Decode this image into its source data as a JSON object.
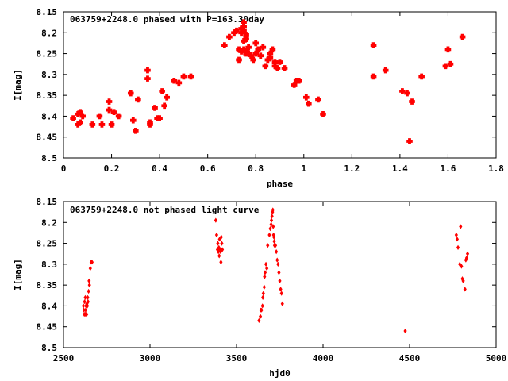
{
  "chart_data": [
    {
      "type": "scatter",
      "title": "063759+2248.0 phased with P=163.30day",
      "xlabel": "phase",
      "ylabel": "I[mag]",
      "xlim": [
        0,
        1.8
      ],
      "ylim": [
        8.5,
        8.15
      ],
      "y_inverted": true,
      "grid": false,
      "xticks": [
        0,
        0.2,
        0.4,
        0.6,
        0.8,
        1,
        1.2,
        1.4,
        1.6,
        1.8
      ],
      "xtick_labels": [
        "0",
        "0.2",
        "0.4",
        "0.6",
        "0.8",
        "1",
        "1.2",
        "1.4",
        "1.6",
        "1.8"
      ],
      "yticks": [
        8.15,
        8.2,
        8.25,
        8.3,
        8.35,
        8.4,
        8.45,
        8.5
      ],
      "ytick_labels": [
        "8.15",
        "8.2",
        "8.25",
        "8.3",
        "8.35",
        "8.4",
        "8.45",
        "8.5"
      ],
      "color": "#ff0000",
      "series": [
        {
          "x": [
            0.04,
            0.06,
            0.07,
            0.08,
            0.07,
            0.06,
            0.12,
            0.15,
            0.16,
            0.19,
            0.19,
            0.2,
            0.21,
            0.23,
            0.28,
            0.3,
            0.29,
            0.31,
            0.35,
            0.35,
            0.36,
            0.36,
            0.38,
            0.39,
            0.4,
            0.41,
            0.42,
            0.43,
            0.46,
            0.48,
            0.5,
            0.53,
            0.67,
            0.69,
            0.71,
            0.72,
            0.73,
            0.73,
            0.74,
            0.75,
            0.75,
            0.75,
            0.75,
            0.76,
            0.76,
            0.77,
            0.76,
            0.75,
            0.74,
            0.74,
            0.75,
            0.76,
            0.77,
            0.78,
            0.79,
            0.8,
            0.8,
            0.81,
            0.82,
            0.83,
            0.84,
            0.85,
            0.86,
            0.86,
            0.87,
            0.88,
            0.88,
            0.89,
            0.9,
            0.92,
            0.96,
            0.97,
            0.98,
            1.01,
            1.02,
            1.06,
            1.08,
            1.29,
            1.29,
            1.34,
            1.41,
            1.43,
            1.44,
            1.45,
            1.49,
            1.59,
            1.6,
            1.61,
            1.66
          ],
          "y": [
            8.405,
            8.395,
            8.415,
            8.4,
            8.39,
            8.42,
            8.42,
            8.4,
            8.42,
            8.385,
            8.365,
            8.42,
            8.39,
            8.4,
            8.345,
            8.435,
            8.41,
            8.36,
            8.31,
            8.29,
            8.42,
            8.415,
            8.38,
            8.405,
            8.405,
            8.34,
            8.375,
            8.355,
            8.315,
            8.32,
            8.305,
            8.305,
            8.23,
            8.21,
            8.2,
            8.195,
            8.265,
            8.24,
            8.245,
            8.22,
            8.175,
            8.185,
            8.195,
            8.205,
            8.215,
            8.235,
            8.25,
            8.24,
            8.2,
            8.19,
            8.185,
            8.245,
            8.25,
            8.255,
            8.265,
            8.225,
            8.25,
            8.24,
            8.255,
            8.235,
            8.28,
            8.265,
            8.25,
            8.26,
            8.24,
            8.28,
            8.27,
            8.285,
            8.27,
            8.285,
            8.325,
            8.315,
            8.315,
            8.355,
            8.37,
            8.36,
            8.395,
            8.23,
            8.305,
            8.29,
            8.34,
            8.345,
            8.46,
            8.365,
            8.305,
            8.28,
            8.24,
            8.275,
            8.21
          ]
        }
      ]
    },
    {
      "type": "scatter",
      "title": "063759+2248.0 not phased light curve",
      "xlabel": "hjd0",
      "ylabel": "I[mag]",
      "xlim": [
        2500,
        5000
      ],
      "ylim": [
        8.5,
        8.15
      ],
      "y_inverted": true,
      "grid": false,
      "xticks": [
        2500,
        3000,
        3500,
        4000,
        4500,
        5000
      ],
      "xtick_labels": [
        "2500",
        "3000",
        "3500",
        "4000",
        "4500",
        "5000"
      ],
      "yticks": [
        8.15,
        8.2,
        8.25,
        8.3,
        8.35,
        8.4,
        8.45,
        8.5
      ],
      "ytick_labels": [
        "8.15",
        "8.2",
        "8.25",
        "8.3",
        "8.35",
        "8.4",
        "8.45",
        "8.5"
      ],
      "color": "#ff0000",
      "series": [
        {
          "x": [
            2615,
            2620,
            2622,
            2625,
            2628,
            2630,
            2632,
            2635,
            2638,
            2640,
            2642,
            2645,
            2648,
            2650,
            2655,
            2660,
            2665,
            2618,
            2626,
            2634,
            3380,
            3385,
            3390,
            3392,
            3395,
            3398,
            3400,
            3402,
            3405,
            3408,
            3410,
            3412,
            3415,
            3418,
            3630,
            3638,
            3645,
            3650,
            3655,
            3660,
            3665,
            3670,
            3675,
            3680,
            3690,
            3695,
            3700,
            3702,
            3705,
            3708,
            3710,
            3712,
            3714,
            3716,
            3718,
            3720,
            3725,
            3730,
            3735,
            3740,
            3745,
            3750,
            3755,
            3760,
            3765,
            3640,
            3652,
            3662,
            4475,
            4770,
            4780,
            4790,
            4800,
            4805,
            4810,
            4820,
            4825,
            4830,
            4835,
            4775,
            4795
          ],
          "y": [
            8.4,
            8.42,
            8.39,
            8.42,
            8.41,
            8.4,
            8.42,
            8.395,
            8.4,
            8.38,
            8.39,
            8.365,
            8.34,
            8.35,
            8.31,
            8.295,
            8.295,
            8.41,
            8.38,
            8.42,
            8.195,
            8.23,
            8.265,
            8.25,
            8.27,
            8.26,
            8.28,
            8.24,
            8.265,
            8.27,
            8.295,
            8.235,
            8.25,
            8.265,
            8.435,
            8.425,
            8.41,
            8.4,
            8.37,
            8.355,
            8.32,
            8.3,
            8.31,
            8.255,
            8.23,
            8.215,
            8.205,
            8.195,
            8.185,
            8.175,
            8.17,
            8.21,
            8.23,
            8.235,
            8.245,
            8.255,
            8.255,
            8.27,
            8.29,
            8.3,
            8.32,
            8.34,
            8.36,
            8.37,
            8.395,
            8.41,
            8.38,
            8.33,
            8.46,
            8.23,
            8.26,
            8.3,
            8.305,
            8.335,
            8.34,
            8.36,
            8.29,
            8.285,
            8.275,
            8.24,
            8.21
          ]
        }
      ]
    }
  ]
}
